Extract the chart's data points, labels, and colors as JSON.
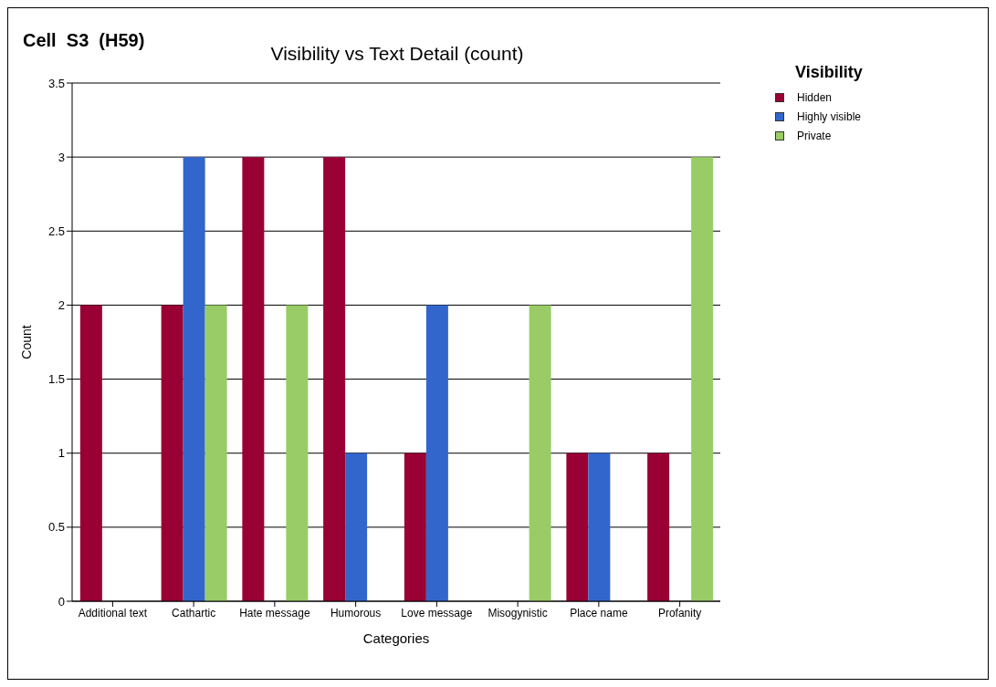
{
  "chart_data": {
    "type": "bar",
    "title": "Visibility vs Text Detail (count)",
    "xlabel": "Categories",
    "ylabel": "Count",
    "legend_title": "Visibility",
    "annotations": [
      "Cell  S3  (H59)"
    ],
    "categories": [
      "Additional text",
      "Cathartic",
      "Hate message",
      "Humorous",
      "Love message",
      "Misogynistic",
      "Place name",
      "Profanity"
    ],
    "series": [
      {
        "name": "Hidden",
        "color": "#990033",
        "values": [
          2,
          2,
          3,
          3,
          1,
          null,
          1,
          1
        ]
      },
      {
        "name": "Highly visible",
        "color": "#3366cc",
        "values": [
          null,
          3,
          null,
          1,
          2,
          null,
          1,
          null
        ]
      },
      {
        "name": "Private",
        "color": "#99cc66",
        "values": [
          null,
          2,
          2,
          null,
          null,
          2,
          null,
          3
        ]
      }
    ],
    "ylim": [
      0,
      3.5
    ],
    "yticks": [
      0,
      0.5,
      1,
      1.5,
      2,
      2.5,
      3,
      3.5
    ],
    "grid": "y",
    "legend": "top right"
  }
}
